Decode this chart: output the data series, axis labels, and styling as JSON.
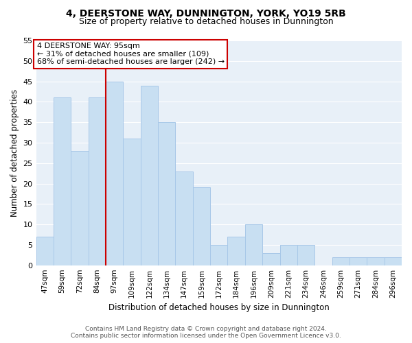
{
  "title": "4, DEERSTONE WAY, DUNNINGTON, YORK, YO19 5RB",
  "subtitle": "Size of property relative to detached houses in Dunnington",
  "xlabel": "Distribution of detached houses by size in Dunnington",
  "ylabel": "Number of detached properties",
  "footer_line1": "Contains HM Land Registry data © Crown copyright and database right 2024.",
  "footer_line2": "Contains public sector information licensed under the Open Government Licence v3.0.",
  "bar_labels": [
    "47sqm",
    "59sqm",
    "72sqm",
    "84sqm",
    "97sqm",
    "109sqm",
    "122sqm",
    "134sqm",
    "147sqm",
    "159sqm",
    "172sqm",
    "184sqm",
    "196sqm",
    "209sqm",
    "221sqm",
    "234sqm",
    "246sqm",
    "259sqm",
    "271sqm",
    "284sqm",
    "296sqm"
  ],
  "bar_values": [
    7,
    41,
    28,
    41,
    45,
    31,
    44,
    35,
    23,
    19,
    5,
    7,
    10,
    3,
    5,
    5,
    0,
    2,
    2,
    2,
    2
  ],
  "bar_color": "#c8dff2",
  "bar_edge_color": "#a8c8e8",
  "vline_x_index": 4,
  "vline_color": "#cc0000",
  "ylim": [
    0,
    55
  ],
  "yticks": [
    0,
    5,
    10,
    15,
    20,
    25,
    30,
    35,
    40,
    45,
    50,
    55
  ],
  "annotation_title": "4 DEERSTONE WAY: 95sqm",
  "annotation_line1": "← 31% of detached houses are smaller (109)",
  "annotation_line2": "68% of semi-detached houses are larger (242) →",
  "annotation_box_color": "#ffffff",
  "annotation_box_edge": "#cc0000",
  "ax_facecolor": "#e8f0f8",
  "fig_facecolor": "#ffffff",
  "grid_color": "#ffffff",
  "title_fontsize": 10,
  "subtitle_fontsize": 9
}
